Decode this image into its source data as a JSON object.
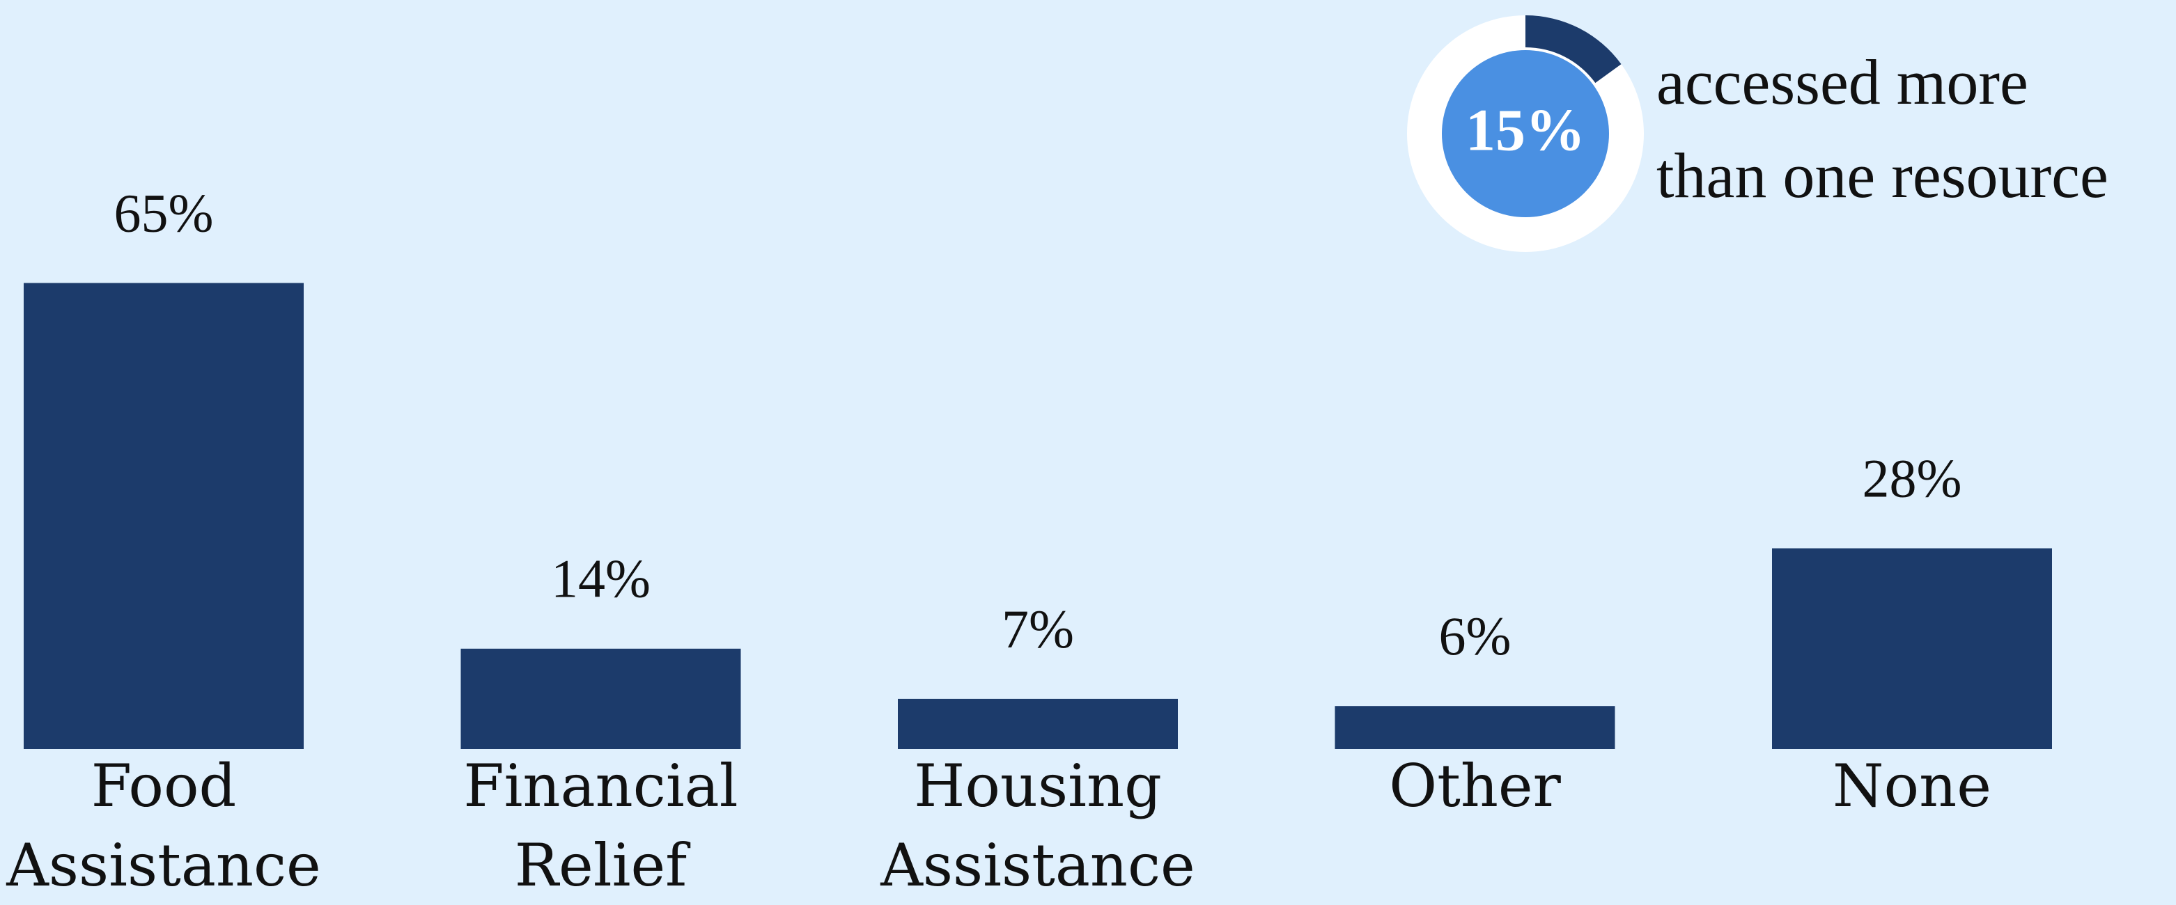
{
  "chart_data": [
    {
      "type": "bar",
      "categories": [
        "Food Assistance",
        "Financial Relief",
        "Housing Assistance",
        "Other",
        "None"
      ],
      "values": [
        65,
        14,
        7,
        6,
        28
      ],
      "value_labels": [
        "65%",
        "14%",
        "7%",
        "6%",
        "28%"
      ],
      "color": "#1c3b6b"
    },
    {
      "type": "pie",
      "values": [
        15
      ],
      "value_labels": [
        "15%"
      ],
      "color": "#1c3b6b",
      "caption": [
        "accessed more",
        "than one resource"
      ]
    }
  ]
}
